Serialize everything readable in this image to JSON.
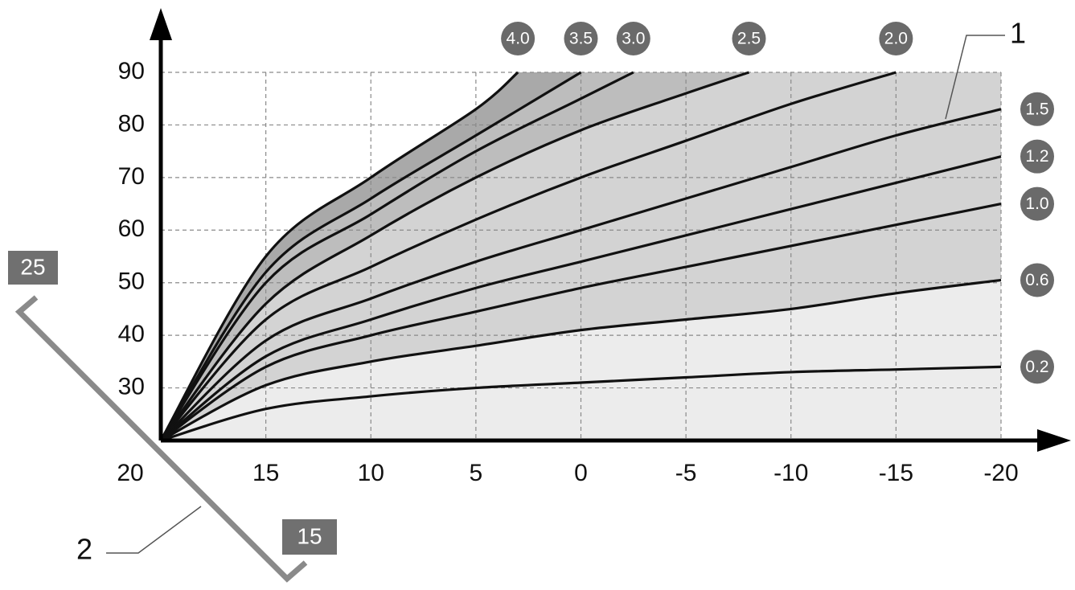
{
  "chart_data": {
    "type": "line",
    "xlim": [
      20,
      -20
    ],
    "ylim": [
      20,
      90
    ],
    "xticks": [
      20,
      15,
      10,
      5,
      0,
      -5,
      -10,
      -15,
      -20
    ],
    "yticks": [
      30,
      40,
      50,
      60,
      70,
      80,
      90
    ],
    "grid": true,
    "series": [
      {
        "name": "4.0",
        "color": "#111111",
        "band_color": "#a9a9a9",
        "x": [
          20,
          15,
          10,
          5,
          3
        ],
        "values": [
          20,
          55,
          70,
          83,
          90
        ]
      },
      {
        "name": "3.5",
        "color": "#111111",
        "band_color": "#bdbdbd",
        "x": [
          20,
          15,
          10,
          5,
          0
        ],
        "values": [
          20,
          52,
          66,
          78,
          90
        ]
      },
      {
        "name": "3.0",
        "color": "#111111",
        "x": [
          20,
          15,
          10,
          5,
          0,
          -2.5
        ],
        "values": [
          20,
          50,
          63,
          75,
          85,
          90
        ]
      },
      {
        "name": "2.5",
        "color": "#111111",
        "band_color": "#d3d3d3",
        "x": [
          20,
          15,
          10,
          5,
          0,
          -5,
          -8
        ],
        "values": [
          20,
          46,
          59,
          70,
          79,
          86,
          90
        ]
      },
      {
        "name": "2.0",
        "color": "#111111",
        "x": [
          20,
          15,
          10,
          5,
          0,
          -5,
          -10,
          -15
        ],
        "values": [
          20,
          43,
          53,
          62,
          70,
          77,
          84,
          90
        ]
      },
      {
        "name": "1.5",
        "color": "#111111",
        "x": [
          20,
          15,
          10,
          5,
          0,
          -5,
          -10,
          -15,
          -20
        ],
        "values": [
          20,
          39,
          47,
          54,
          60,
          66,
          72,
          78,
          83
        ]
      },
      {
        "name": "1.2",
        "color": "#111111",
        "x": [
          20,
          15,
          10,
          5,
          0,
          -5,
          -10,
          -15,
          -20
        ],
        "values": [
          20,
          36,
          43,
          49,
          54,
          59,
          64,
          69,
          74
        ]
      },
      {
        "name": "1.0",
        "color": "#111111",
        "x": [
          20,
          15,
          10,
          5,
          0,
          -5,
          -10,
          -15,
          -20
        ],
        "values": [
          20,
          34,
          40,
          44.5,
          49,
          53,
          57,
          61,
          65
        ]
      },
      {
        "name": "0.6",
        "color": "#111111",
        "band_color": "#ececec",
        "x": [
          20,
          15,
          10,
          5,
          0,
          -5,
          -10,
          -15,
          -20
        ],
        "values": [
          20,
          30.5,
          35,
          38,
          41,
          43,
          45,
          48,
          50.5
        ]
      },
      {
        "name": "0.2",
        "color": "#111111",
        "x": [
          20,
          15,
          10,
          5,
          0,
          -5,
          -10,
          -15,
          -20
        ],
        "values": [
          20,
          26,
          28.4,
          30,
          31,
          32,
          33,
          33.5,
          34
        ]
      }
    ],
    "annotations": {
      "curves_marker": "1",
      "room_marker": "2",
      "room_high": "25",
      "room_low": "15"
    }
  }
}
